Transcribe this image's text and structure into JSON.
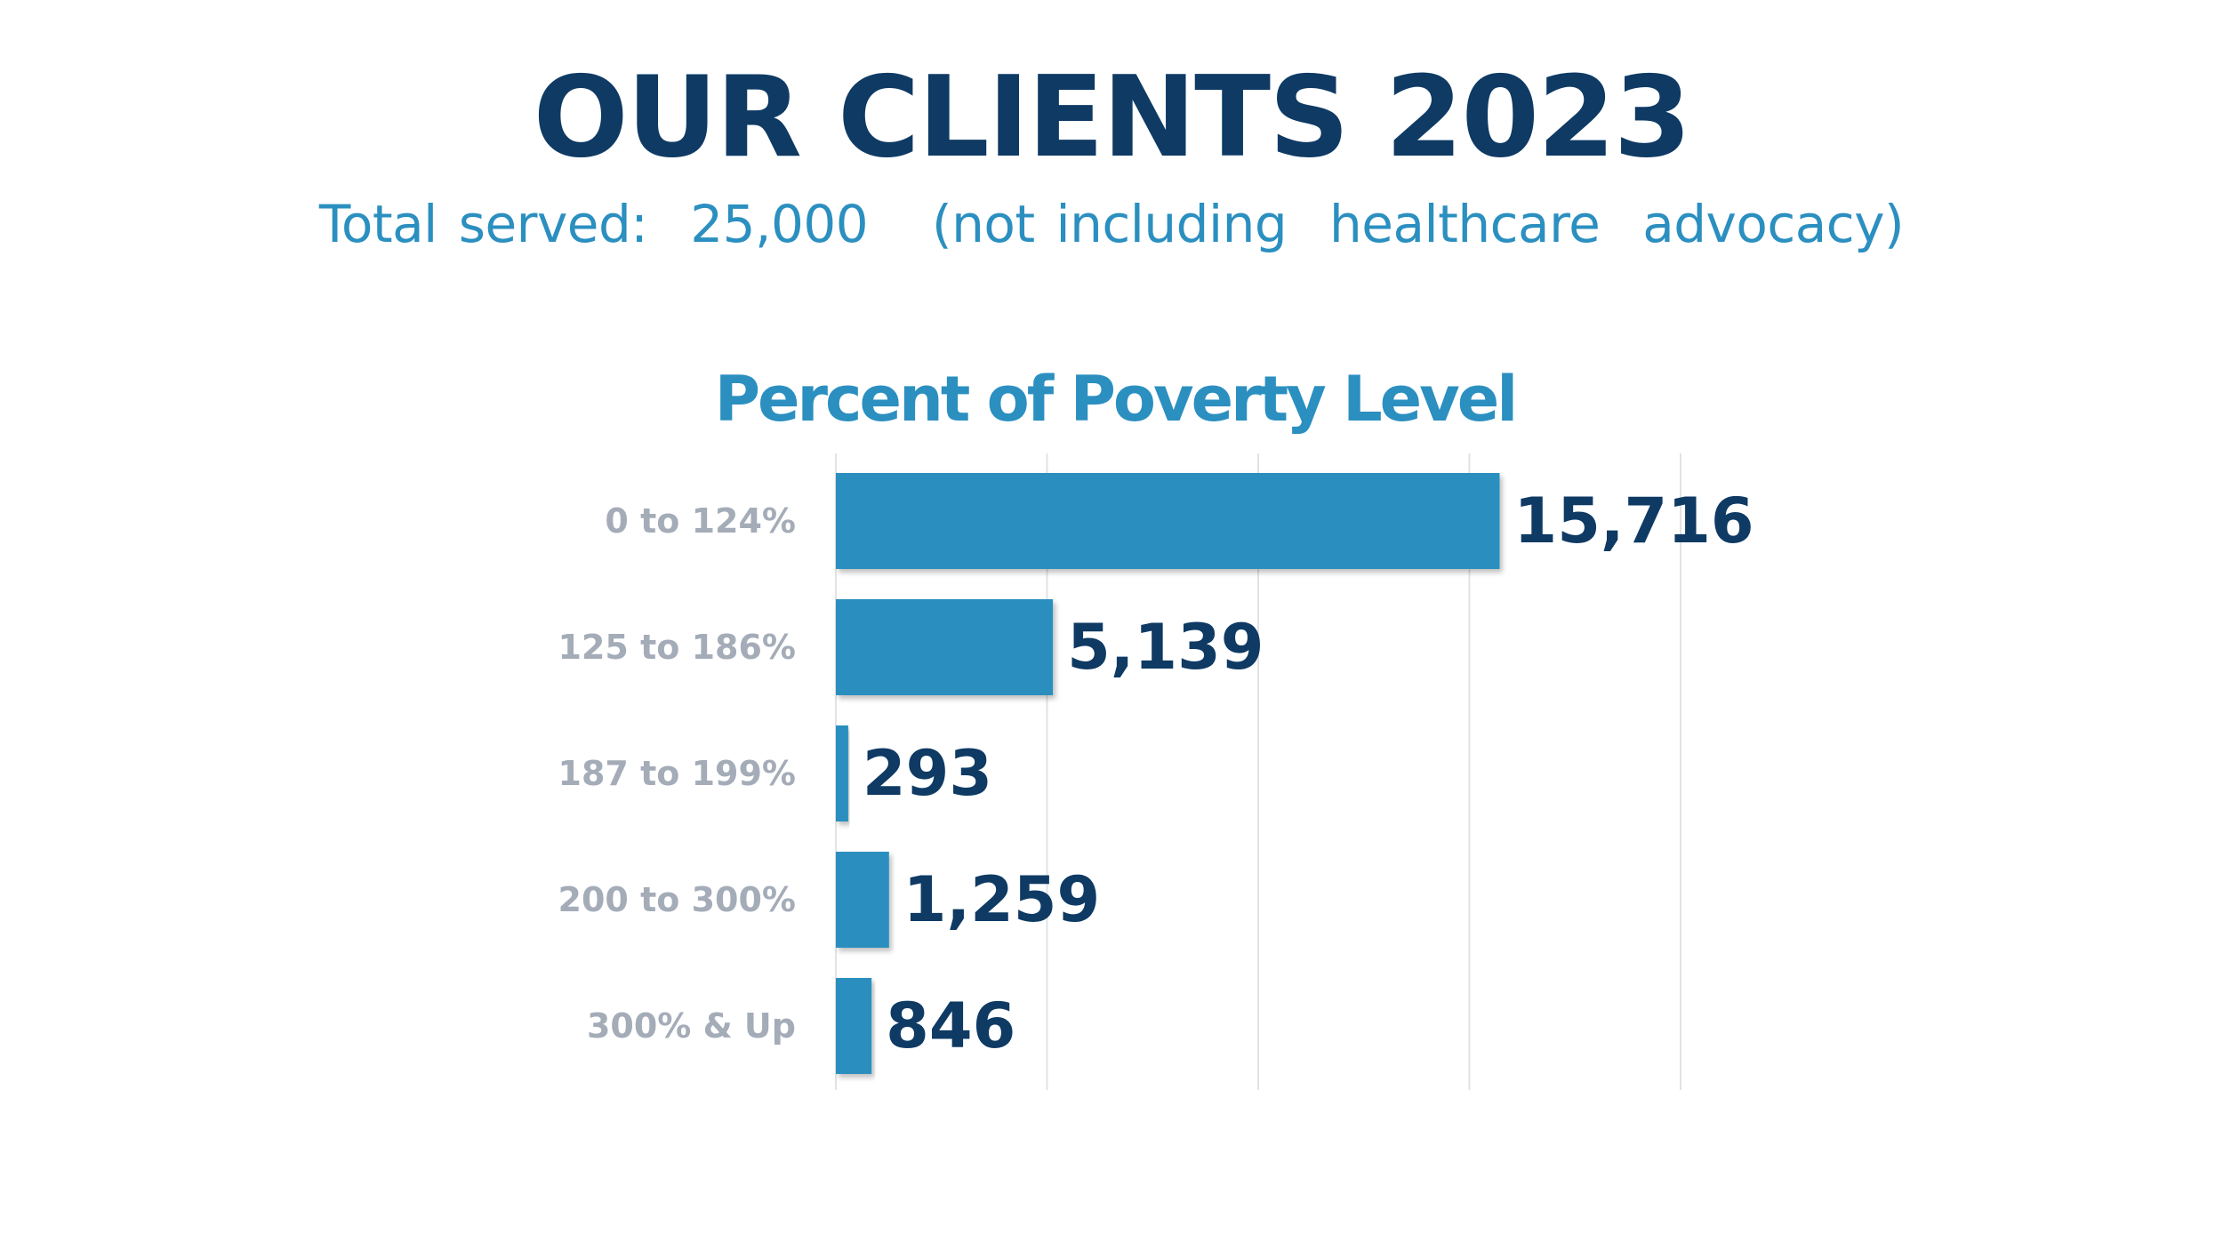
{
  "header": {
    "title": "OUR CLIENTS 2023",
    "subtitle": "Total served:  25,000   (not including  healthcare  advocacy)"
  },
  "colors": {
    "title": "#0e3a64",
    "accent": "#2b8fc0",
    "bar": "#2a8fbf",
    "category_label": "#a4acb8",
    "gridline": "#e3e3e3"
  },
  "chart_data": {
    "type": "bar",
    "orientation": "horizontal",
    "title": "Percent of Poverty Level",
    "categories": [
      "0 to 124%",
      "125 to 186%",
      "187 to 199%",
      "200 to 300%",
      "300% & Up"
    ],
    "values": [
      15716,
      5139,
      293,
      1259,
      846
    ],
    "value_labels": [
      "15,716",
      "5,139",
      "293",
      "1,259",
      "846"
    ],
    "xlim": [
      0,
      20000
    ],
    "x_gridlines": [
      0,
      5000,
      10000,
      15000,
      20000
    ],
    "x_tick_labels_shown": false,
    "grid": true,
    "legend": "none"
  }
}
